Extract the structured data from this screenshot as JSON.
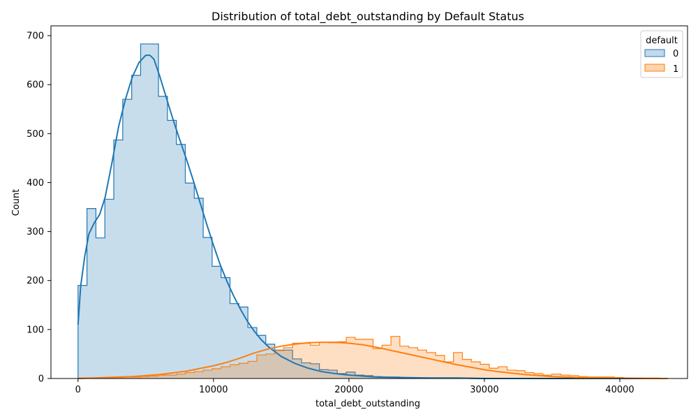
{
  "chart_data": {
    "type": "histogram",
    "title": "Distribution of total_debt_outstanding by Default Status",
    "xlabel": "total_debt_outstanding",
    "ylabel": "Count",
    "xlim": [
      -2000,
      45000
    ],
    "ylim": [
      0,
      720
    ],
    "x_ticks": [
      0,
      10000,
      20000,
      30000,
      40000
    ],
    "y_ticks": [
      0,
      100,
      200,
      300,
      400,
      500,
      600,
      700
    ],
    "bin_start": 0,
    "bin_width": 660,
    "legend": {
      "title": "default",
      "position": "top-right"
    },
    "series": [
      {
        "name": "0",
        "color": "#1f77b4",
        "fill_color": "#c3d8ea",
        "values": [
          190,
          347,
          287,
          366,
          487,
          570,
          619,
          683,
          683,
          576,
          527,
          478,
          399,
          368,
          288,
          229,
          206,
          153,
          146,
          104,
          88,
          70,
          58,
          58,
          40,
          32,
          30,
          18,
          17,
          10,
          13,
          7,
          6,
          4,
          3,
          3,
          2,
          2,
          1,
          1,
          1,
          1,
          1,
          1,
          0,
          0,
          0,
          0,
          0,
          0,
          0,
          0,
          0,
          0,
          0,
          0,
          0,
          0,
          0,
          0,
          0,
          0,
          0,
          0,
          0,
          0
        ],
        "kde_x": [
          0,
          200,
          500,
          800,
          1200,
          1600,
          2000,
          2500,
          3000,
          3500,
          4000,
          4500,
          5000,
          5300,
          5600,
          6000,
          6500,
          7000,
          7500,
          8000,
          8500,
          9000,
          9500,
          10000,
          10500,
          11000,
          11500,
          12000,
          12500,
          13000,
          13500,
          14000,
          15000,
          16000,
          17000,
          18000,
          19000,
          20000,
          21000,
          22000,
          24000,
          26000,
          28000,
          30000,
          33000,
          36000,
          40000,
          43500
        ],
        "kde_y": [
          110,
          190,
          250,
          295,
          318,
          335,
          370,
          440,
          515,
          570,
          615,
          645,
          660,
          660,
          652,
          620,
          575,
          530,
          488,
          448,
          405,
          360,
          315,
          272,
          232,
          198,
          168,
          141,
          117,
          97,
          80,
          66,
          45,
          31,
          21,
          14,
          10,
          7,
          5,
          3,
          2,
          1,
          1,
          0,
          0,
          0,
          0,
          0
        ]
      },
      {
        "name": "1",
        "color": "#ff7f0e",
        "fill_color": "#fdd3b0",
        "values": [
          1,
          1,
          1,
          1,
          2,
          3,
          3,
          4,
          5,
          7,
          7,
          9,
          12,
          14,
          17,
          20,
          24,
          28,
          31,
          35,
          48,
          50,
          57,
          63,
          72,
          72,
          68,
          74,
          73,
          75,
          84,
          80,
          80,
          61,
          68,
          86,
          66,
          63,
          58,
          53,
          47,
          34,
          53,
          39,
          34,
          29,
          21,
          24,
          17,
          16,
          12,
          10,
          7,
          9,
          7,
          6,
          4,
          3,
          3,
          3,
          2,
          1,
          1,
          1,
          1,
          0
        ],
        "kde_x": [
          0,
          2000,
          4000,
          6000,
          8000,
          10000,
          11000,
          12000,
          13000,
          14000,
          15000,
          16000,
          17000,
          18000,
          19000,
          20000,
          21000,
          22000,
          23000,
          24000,
          25000,
          26000,
          27000,
          28000,
          29000,
          30000,
          31000,
          32000,
          33000,
          34000,
          35000,
          36000,
          37000,
          38000,
          40000,
          42000,
          43500
        ],
        "kde_y": [
          0,
          2,
          4,
          8,
          15,
          26,
          33,
          42,
          52,
          60,
          66,
          70,
          73,
          74,
          74,
          72,
          69,
          64,
          58,
          52,
          46,
          40,
          34,
          28,
          23,
          18,
          14,
          11,
          8,
          6,
          4,
          3,
          2,
          1,
          1,
          0,
          0
        ]
      }
    ]
  }
}
